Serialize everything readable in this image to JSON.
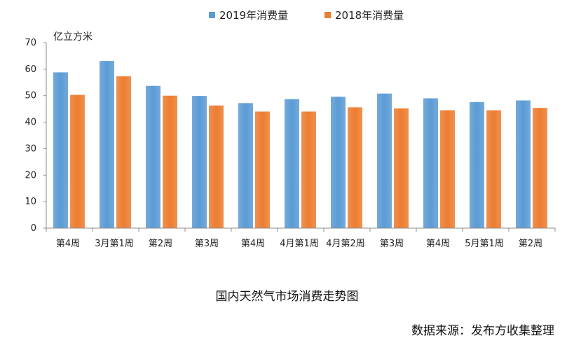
{
  "chart_data": {
    "type": "bar",
    "categories": [
      "第4周",
      "3月第1周",
      "第2周",
      "第3周",
      "第4周",
      "4月第1周",
      "4月第2周",
      "第3周",
      "第4周",
      "5月第1周",
      "第2周"
    ],
    "series": [
      {
        "name": "2019年消费量",
        "color": "#5b9bd5",
        "values": [
          58.8,
          63.1,
          53.7,
          49.9,
          47.2,
          48.7,
          49.6,
          50.8,
          49.0,
          47.6,
          48.2
        ]
      },
      {
        "name": "2018年消费量",
        "color": "#ed7d31",
        "values": [
          50.3,
          57.3,
          50.0,
          46.3,
          44.0,
          44.0,
          45.6,
          45.2,
          44.5,
          44.5,
          45.4
        ]
      }
    ],
    "ylabel": "亿立方米",
    "ylim": [
      0,
      70
    ],
    "yticks": [
      0,
      10,
      20,
      30,
      40,
      50,
      60,
      70
    ],
    "legend_position": "top-center",
    "grid": false
  },
  "caption": "国内天然气市场消费走势图",
  "source": "数据来源：发布方收集整理"
}
